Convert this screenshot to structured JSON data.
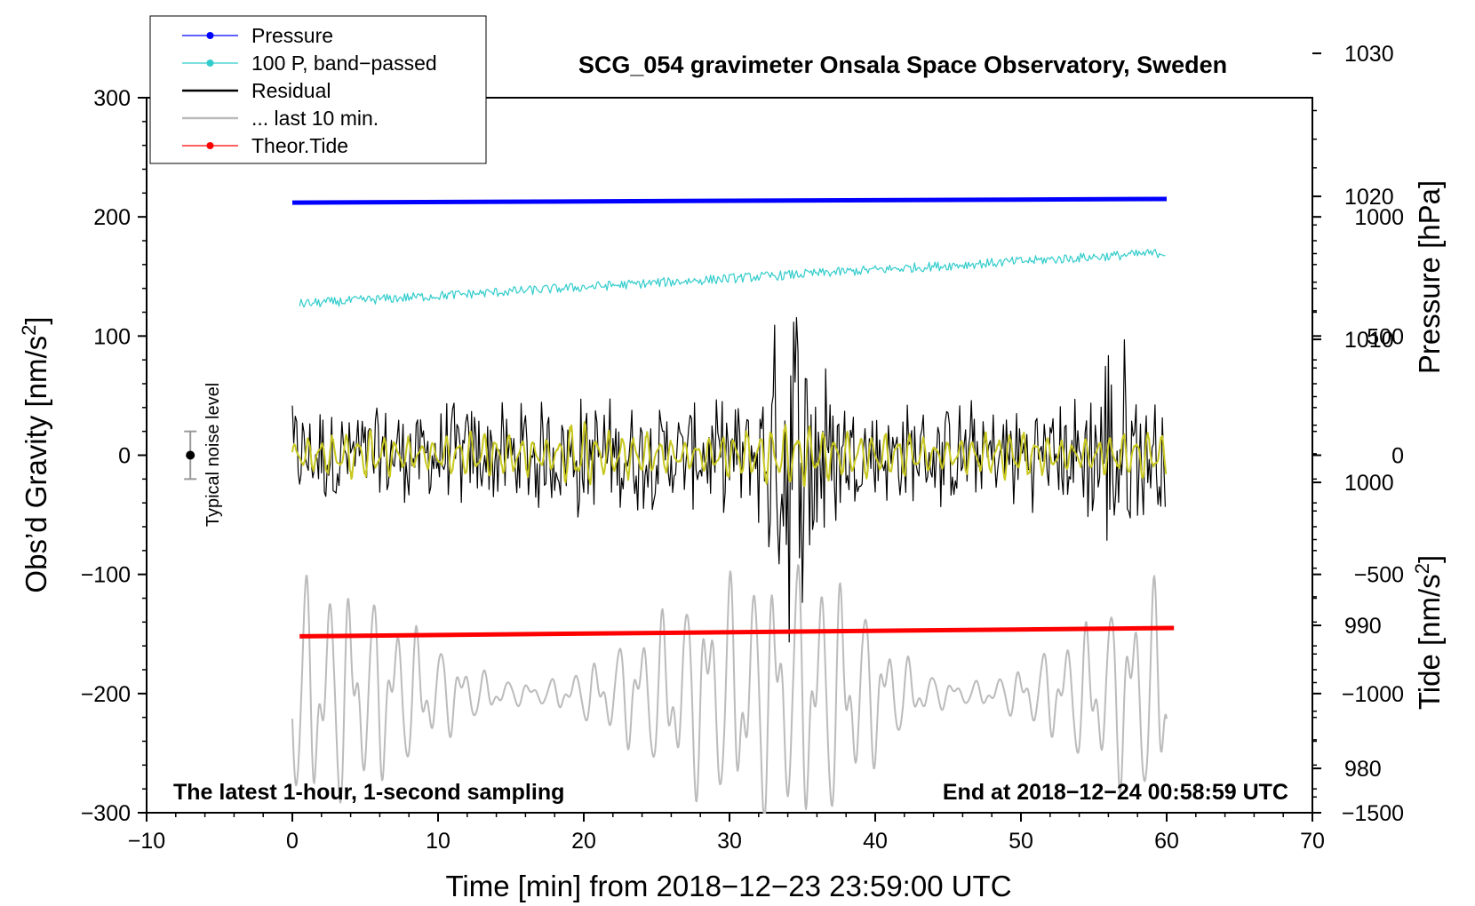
{
  "chart_data": {
    "type": "line",
    "title": "SCG_054 gravimeter Onsala Space Observatory, Sweden",
    "xlabel": "Time [min] from 2018−12−23 23:59:00 UTC",
    "ylabel_main": "Obs’d Gravity [nm/s",
    "ylabel_sup": "2",
    "ylabel_close": "]",
    "y2label_pressure": "Pressure [hPa]",
    "y2label_tide_main": "Tide [nm/s",
    "y2label_tide_sup": "2",
    "y2label_tide_close": "]",
    "xlim": [
      -10,
      70
    ],
    "ylim": [
      -300,
      300
    ],
    "pressure_axis": {
      "range": [
        976.9,
        1026.9
      ],
      "ticks": [
        "980",
        "990",
        "1000",
        "1010",
        "1020",
        "1030"
      ],
      "tick_values": [
        980,
        990,
        1000,
        1010,
        1020,
        1030
      ]
    },
    "tide_axis": {
      "range": [
        -1500,
        1500
      ],
      "ticks": [
        "1000",
        "500",
        "0",
        "−500",
        "−1000",
        "−1500"
      ],
      "tick_values": [
        1000,
        500,
        0,
        -500,
        -1000,
        -1500
      ]
    },
    "xticks": [
      "−10",
      "0",
      "10",
      "20",
      "30",
      "40",
      "50",
      "60",
      "70"
    ],
    "xtick_values": [
      -10,
      0,
      10,
      20,
      30,
      40,
      50,
      60,
      70
    ],
    "yticks": [
      "300",
      "200",
      "100",
      "0",
      "−100",
      "−200",
      "−300"
    ],
    "ytick_values": [
      300,
      200,
      100,
      0,
      -100,
      -200,
      -300
    ],
    "note_left": "The latest 1-hour, 1-second sampling",
    "note_right": "End at 2018−12−24 00:58:59 UTC",
    "noise_label": "Typical noise level",
    "noise_bar": {
      "x": -7,
      "y": 0,
      "half_range": 20
    },
    "legend": [
      {
        "label": "Pressure",
        "color": "#0000ff",
        "marker": true
      },
      {
        "label": "100 P, band−passed",
        "color": "#33cccc",
        "marker": true
      },
      {
        "label": "Residual",
        "color": "#000000",
        "marker": false
      },
      {
        "label": "... last 10 min.",
        "color": "#bbbbbb",
        "marker": false
      },
      {
        "label": "Theor.Tide",
        "color": "#ff0000",
        "marker": true
      }
    ],
    "series": [
      {
        "name": "Pressure",
        "axis": "left",
        "color": "#0000ff",
        "start": [
          0,
          212
        ],
        "end": [
          60,
          215
        ]
      },
      {
        "name": "100 P, band−passed",
        "axis": "left",
        "color": "#33cccc",
        "start": [
          0.5,
          127
        ],
        "end": [
          60,
          170
        ],
        "noise": 4
      },
      {
        "name": "Residual",
        "axis": "left",
        "color": "#000000",
        "center": 0,
        "amplitude": 50,
        "bursts": [
          [
            34,
            130
          ],
          [
            35.5,
            120
          ],
          [
            56.5,
            115
          ],
          [
            19.5,
            60
          ]
        ]
      },
      {
        "name": "Residual filtered",
        "axis": "left",
        "color": "#c8c820",
        "center": 0,
        "amplitude": 28
      },
      {
        "name": "... last 10 min.",
        "axis": "left",
        "color": "#bbbbbb",
        "center": -200,
        "amplitude": 100
      },
      {
        "name": "Theor.Tide",
        "axis": "left",
        "color": "#ff0000",
        "start": [
          0.5,
          -152
        ],
        "end": [
          60.5,
          -145
        ]
      }
    ]
  }
}
